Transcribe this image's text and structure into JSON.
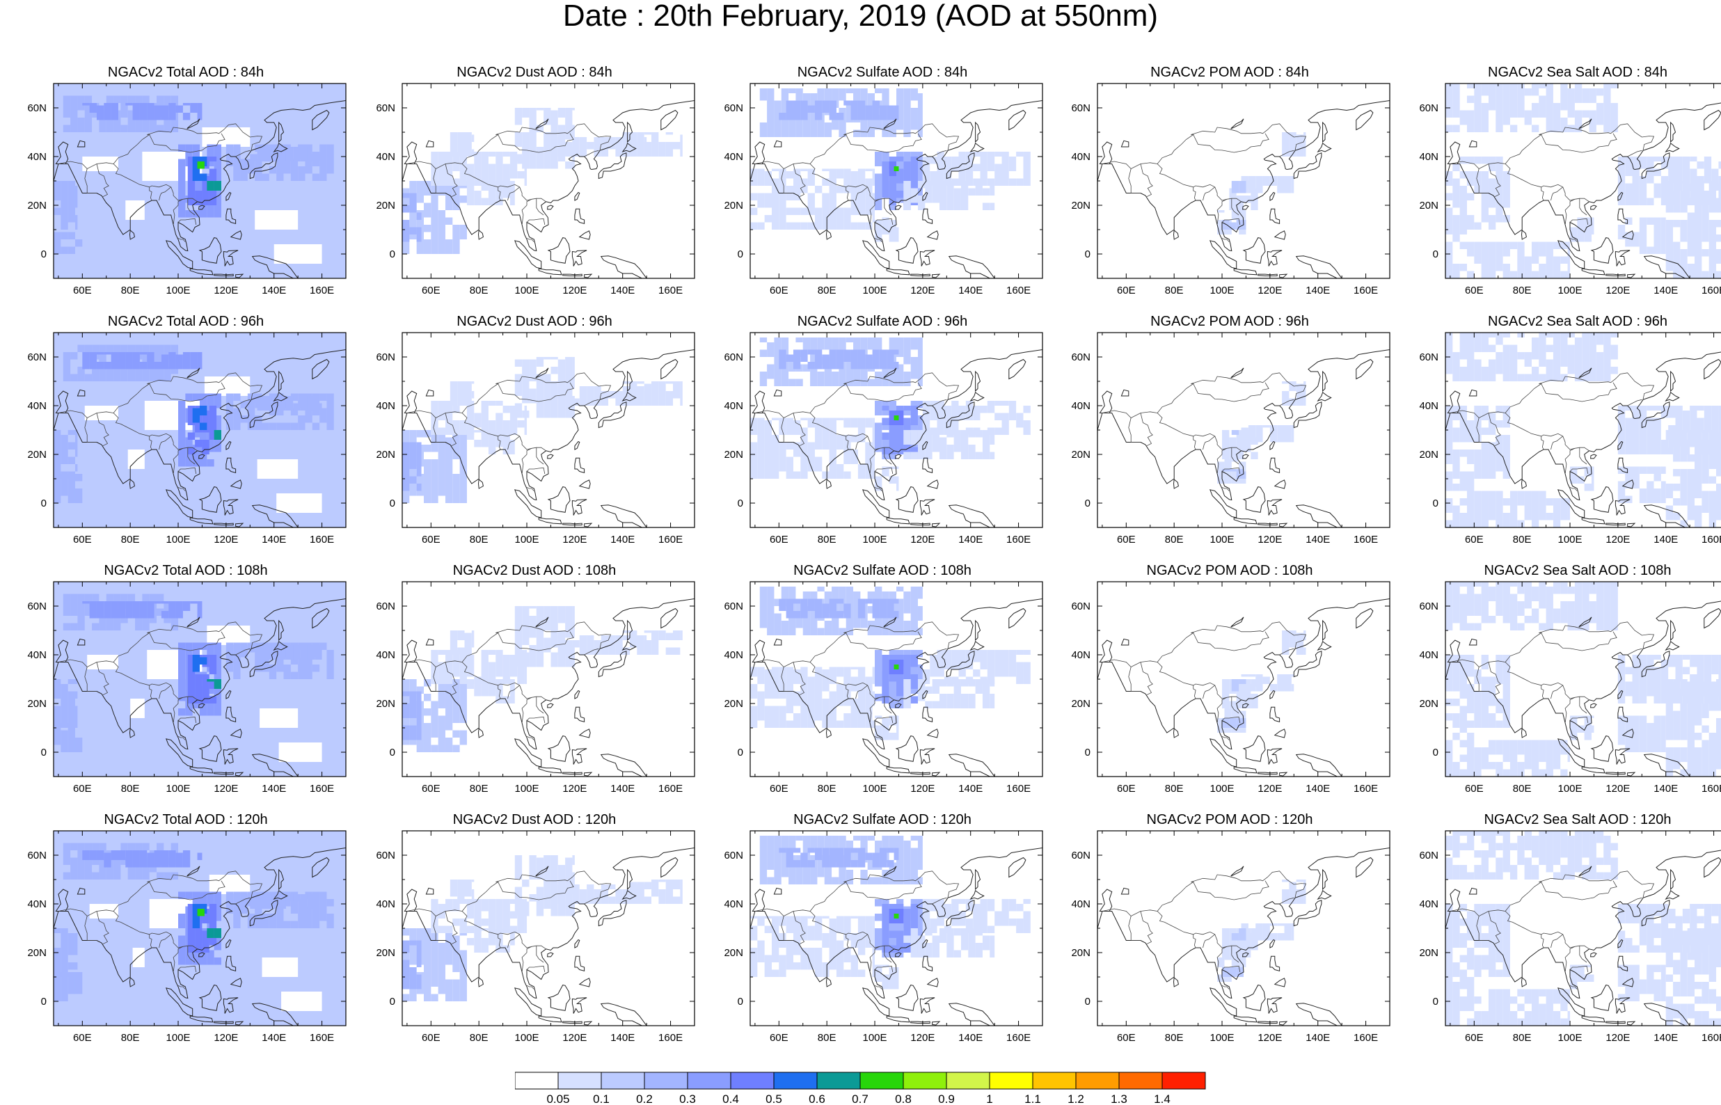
{
  "title": "Date : 20th February, 2019 (AOD at 550nm)",
  "map": {
    "lon_ticks": [
      "60E",
      "80E",
      "100E",
      "120E",
      "140E",
      "160E"
    ],
    "lat_ticks": [
      "60N",
      "40N",
      "20N",
      "0"
    ],
    "extent": {
      "lon": [
        48,
        170
      ],
      "lat": [
        -10,
        70
      ]
    }
  },
  "rows": [
    {
      "lead": "84h",
      "titles": [
        "NGACv2 Total AOD : 84h",
        "NGACv2 Dust AOD : 84h",
        "NGACv2 Sulfate AOD : 84h",
        "NGACv2 POM AOD : 84h",
        "NGACv2 Sea Salt AOD : 84h"
      ]
    },
    {
      "lead": "96h",
      "titles": [
        "NGACv2 Total AOD : 96h",
        "NGACv2 Dust AOD : 96h",
        "NGACv2 Sulfate AOD : 96h",
        "NGACv2 POM AOD : 96h",
        "NGACv2 Sea Salt AOD : 96h"
      ]
    },
    {
      "lead": "108h",
      "titles": [
        "NGACv2 Total AOD : 108h",
        "NGACv2 Dust AOD : 108h",
        "NGACv2 Sulfate AOD : 108h",
        "NGACv2 POM AOD : 108h",
        "NGACv2 Sea Salt AOD : 108h"
      ]
    },
    {
      "lead": "120h",
      "titles": [
        "NGACv2 Total AOD : 120h",
        "NGACv2 Dust AOD : 120h",
        "NGACv2 Sulfate AOD : 120h",
        "NGACv2 POM AOD : 120h",
        "NGACv2 Sea Salt  AOD : 120h"
      ]
    }
  ],
  "colorbar": {
    "labels": [
      "0.05",
      "0.1",
      "0.2",
      "0.3",
      "0.4",
      "0.5",
      "0.6",
      "0.7",
      "0.8",
      "0.9",
      "1",
      "1.1",
      "1.2",
      "1.3",
      "1.4"
    ],
    "colors": [
      "#ffffff",
      "#d6e0ff",
      "#bccbff",
      "#a3b5ff",
      "#8a9dff",
      "#6f7fff",
      "#1f6ff0",
      "#0b9a96",
      "#27d60a",
      "#8ff00b",
      "#d2f54a",
      "#ffff00",
      "#ffc400",
      "#ff9c00",
      "#ff6a00",
      "#ff2000"
    ]
  }
}
